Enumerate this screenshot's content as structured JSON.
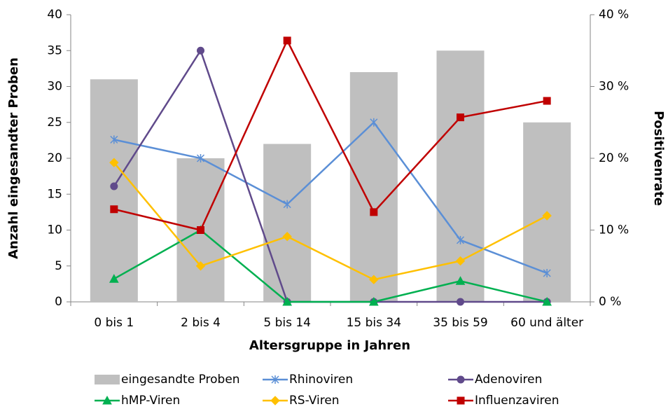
{
  "chart_data": {
    "type": "combo",
    "x_label": "Altersgruppe in Jahren",
    "y_label": "Anzahl eingesandter Proben",
    "y2_label": "Positivenrate",
    "categories": [
      "0 bis 1",
      "2 bis 4",
      "5 bis 14",
      "15 bis 34",
      "35 bis 59",
      "60 und älter"
    ],
    "ylim": [
      0,
      40
    ],
    "yticks": [
      0,
      5,
      10,
      15,
      20,
      25,
      30,
      35,
      40
    ],
    "y2lim": [
      0,
      40
    ],
    "y2ticks": [
      {
        "value": 0,
        "label": "0 %"
      },
      {
        "value": 10,
        "label": "10 %"
      },
      {
        "value": 20,
        "label": "20 %"
      },
      {
        "value": 30,
        "label": "30 %"
      },
      {
        "value": 40,
        "label": "40 %"
      }
    ],
    "grid": false,
    "legend": "bottom",
    "series": [
      {
        "name": "eingesandte Proben",
        "type": "bar",
        "axis": "y",
        "color": "#bfbfbf",
        "values": [
          31,
          20,
          22,
          32,
          35,
          25
        ]
      },
      {
        "name": "Rhinoviren",
        "type": "line",
        "axis": "y2",
        "marker": "star",
        "color": "#5b8fd6",
        "values": [
          22.6,
          20,
          13.6,
          25,
          8.6,
          4
        ]
      },
      {
        "name": "Adenoviren",
        "type": "line",
        "axis": "y2",
        "marker": "circle",
        "color": "#604a8b",
        "values": [
          16.1,
          35,
          0,
          0,
          0,
          0
        ]
      },
      {
        "name": "hMP-Viren",
        "type": "line",
        "axis": "y2",
        "marker": "triangle",
        "color": "#00b050",
        "values": [
          3.2,
          10,
          0,
          0,
          2.9,
          0
        ]
      },
      {
        "name": "RS-Viren",
        "type": "line",
        "axis": "y2",
        "marker": "diamond",
        "color": "#ffc000",
        "values": [
          19.4,
          5,
          9.1,
          3.1,
          5.7,
          12
        ]
      },
      {
        "name": "Influenzaviren",
        "type": "line",
        "axis": "y2",
        "marker": "square",
        "color": "#c00000",
        "values": [
          12.9,
          10,
          36.4,
          12.5,
          25.7,
          28
        ]
      }
    ]
  }
}
